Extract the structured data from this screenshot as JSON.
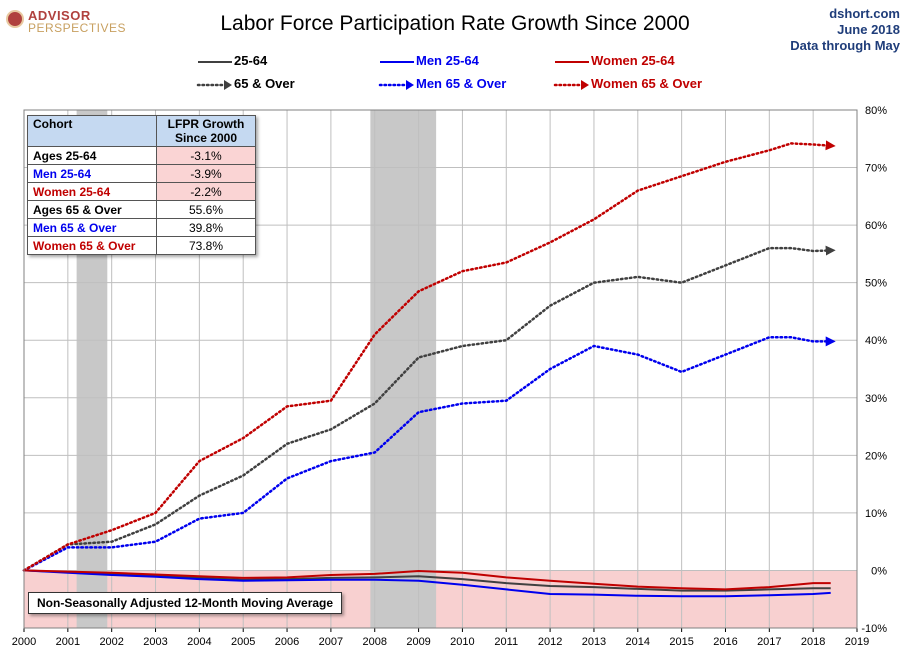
{
  "logo": {
    "line1": "ADVISOR",
    "line2": "PERSPECTIVES"
  },
  "title": "Labor Force Participation Rate Growth Since 2000",
  "credits": {
    "site": "dshort.com",
    "date": "June 2018",
    "through": "Data through May"
  },
  "note": "Non-Seasonally Adjusted 12-Month Moving Average",
  "colors": {
    "gray": "#404040",
    "blue": "#0000ee",
    "red": "#c00000",
    "recession": "#c8c8c8",
    "negative_band": "#f8d0d0"
  },
  "table": {
    "headers": [
      "Cohort",
      "LFPR Growth Since 2000"
    ],
    "rows": [
      {
        "label": "Ages 25-64",
        "value": "-3.1%",
        "color": "#000000"
      },
      {
        "label": "Men 25-64",
        "value": "-3.9%",
        "color": "#0000ee"
      },
      {
        "label": "Women 25-64",
        "value": "-2.2%",
        "color": "#c00000"
      },
      {
        "label": "Ages 65  & Over",
        "value": "55.6%",
        "color": "#000000"
      },
      {
        "label": "Men 65  & Over",
        "value": "39.8%",
        "color": "#0000ee"
      },
      {
        "label": "Women 65 & Over",
        "value": "73.8%",
        "color": "#c00000"
      }
    ]
  },
  "chart_data": {
    "type": "line",
    "title": "Labor Force Participation Rate Growth Since 2000",
    "xlabel": "",
    "ylabel": "",
    "xlim": [
      2000,
      2019
    ],
    "ylim": [
      -10,
      80
    ],
    "x_ticks": [
      "2000",
      "2001",
      "2002",
      "2003",
      "2004",
      "2005",
      "2006",
      "2007",
      "2008",
      "2009",
      "2010",
      "2011",
      "2012",
      "2013",
      "2014",
      "2015",
      "2016",
      "2017",
      "2018",
      "2019"
    ],
    "y_ticks": [
      "-10%",
      "0%",
      "10%",
      "20%",
      "30%",
      "40%",
      "50%",
      "60%",
      "70%",
      "80%"
    ],
    "grid": true,
    "legend_placement": "top",
    "recessions": [
      [
        2001.2,
        2001.9
      ],
      [
        2007.9,
        2009.4
      ]
    ],
    "series": [
      {
        "name": "25-64",
        "color": "#404040",
        "style": "solid",
        "x": [
          2000,
          2001,
          2002,
          2003,
          2004,
          2005,
          2006,
          2007,
          2008,
          2009,
          2010,
          2011,
          2012,
          2013,
          2014,
          2015,
          2016,
          2017,
          2018,
          2018.4
        ],
        "y": [
          0,
          -0.3,
          -0.6,
          -0.9,
          -1.3,
          -1.6,
          -1.5,
          -1.3,
          -1.2,
          -1.0,
          -1.5,
          -2.2,
          -2.7,
          -2.9,
          -3.2,
          -3.5,
          -3.5,
          -3.3,
          -3.1,
          -3.1
        ]
      },
      {
        "name": "Men 25-64",
        "color": "#0000ee",
        "style": "solid",
        "x": [
          2000,
          2001,
          2002,
          2003,
          2004,
          2005,
          2006,
          2007,
          2008,
          2009,
          2010,
          2011,
          2012,
          2013,
          2014,
          2015,
          2016,
          2017,
          2018,
          2018.4
        ],
        "y": [
          0,
          -0.4,
          -0.8,
          -1.1,
          -1.5,
          -1.8,
          -1.7,
          -1.6,
          -1.6,
          -1.8,
          -2.5,
          -3.3,
          -4.1,
          -4.2,
          -4.4,
          -4.5,
          -4.5,
          -4.3,
          -4.1,
          -3.9
        ]
      },
      {
        "name": "Women 25-64",
        "color": "#c00000",
        "style": "solid",
        "x": [
          2000,
          2001,
          2002,
          2003,
          2004,
          2005,
          2006,
          2007,
          2008,
          2009,
          2010,
          2011,
          2012,
          2013,
          2014,
          2015,
          2016,
          2017,
          2018,
          2018.4
        ],
        "y": [
          0,
          -0.2,
          -0.4,
          -0.7,
          -1.0,
          -1.3,
          -1.2,
          -0.8,
          -0.6,
          -0.1,
          -0.4,
          -1.2,
          -1.8,
          -2.3,
          -2.8,
          -3.1,
          -3.3,
          -2.9,
          -2.2,
          -2.2
        ]
      },
      {
        "name": "65 & Over",
        "color": "#404040",
        "style": "dotted",
        "x": [
          2000,
          2001,
          2002,
          2003,
          2004,
          2005,
          2006,
          2007,
          2008,
          2009,
          2010,
          2011,
          2012,
          2013,
          2014,
          2015,
          2016,
          2017,
          2017.5,
          2018,
          2018.4
        ],
        "y": [
          0,
          4.5,
          5,
          8,
          13,
          16.5,
          22,
          24.5,
          29,
          37,
          39,
          40,
          46,
          50,
          51,
          50,
          53,
          56,
          56,
          55.5,
          55.6
        ]
      },
      {
        "name": "Men 65 & Over",
        "color": "#0000ee",
        "style": "dotted",
        "x": [
          2000,
          2001,
          2002,
          2003,
          2004,
          2005,
          2006,
          2007,
          2008,
          2009,
          2010,
          2011,
          2012,
          2013,
          2014,
          2015,
          2016,
          2017,
          2017.5,
          2018,
          2018.4
        ],
        "y": [
          0,
          4,
          4,
          5,
          9,
          10,
          16,
          19,
          20.5,
          27.5,
          29,
          29.5,
          35,
          39,
          37.5,
          34.5,
          37.5,
          40.5,
          40.5,
          39.8,
          39.8
        ]
      },
      {
        "name": "Women 65 & Over",
        "color": "#c00000",
        "style": "dotted",
        "x": [
          2000,
          2001,
          2002,
          2003,
          2004,
          2005,
          2006,
          2007,
          2008,
          2009,
          2010,
          2011,
          2012,
          2013,
          2014,
          2015,
          2016,
          2017,
          2017.5,
          2018,
          2018.4
        ],
        "y": [
          0,
          4.5,
          7,
          10,
          19,
          23,
          28.5,
          29.5,
          41,
          48.5,
          52,
          53.5,
          57,
          61,
          66,
          68.5,
          71,
          73,
          74.2,
          74,
          73.8
        ]
      }
    ]
  }
}
